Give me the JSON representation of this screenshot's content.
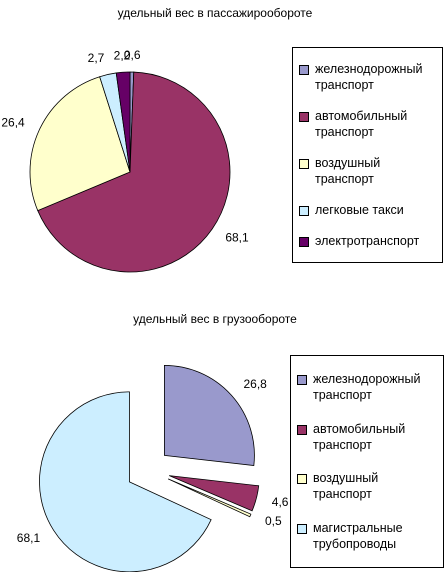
{
  "chart_data": [
    {
      "type": "pie",
      "title": "удельный вес в пассажирообороте",
      "categories": [
        "железнодорожный транспорт",
        "автомобильный транспорт",
        "воздушный транспорт",
        "легковые такси",
        "электротранспорт"
      ],
      "values": [
        0.6,
        68.1,
        26.4,
        2.7,
        2.2
      ],
      "value_labels": [
        "0,6",
        "68,1",
        "26,4",
        "2,7",
        "2,2"
      ],
      "colors": [
        "#9999cc",
        "#993366",
        "#ffffcc",
        "#cceeff",
        "#660066"
      ],
      "legend": "right",
      "exploded": false
    },
    {
      "type": "pie",
      "title": "удельный вес в грузообороте",
      "categories": [
        "железнодорожный транспорт",
        "автомобильный транспорт",
        "воздушный транспорт",
        "магистральные трубопроводы"
      ],
      "values": [
        26.8,
        4.6,
        0.5,
        68.1
      ],
      "value_labels": [
        "26,8",
        "4,6",
        "0,5",
        "68,1"
      ],
      "colors": [
        "#9999cc",
        "#993366",
        "#ffffcc",
        "#cceeff"
      ],
      "legend": "right",
      "exploded": true
    }
  ]
}
